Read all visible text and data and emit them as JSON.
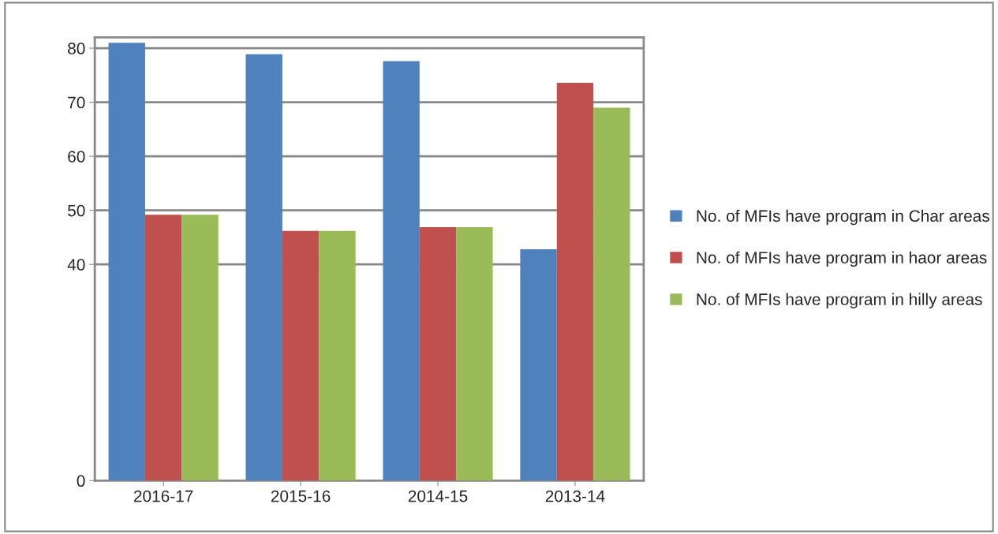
{
  "chart_data": {
    "type": "bar",
    "categories": [
      "2016-17",
      "2015-16",
      "2014-15",
      "2013-14"
    ],
    "series": [
      {
        "name": "No. of MFIs have program in Char areas",
        "color": "#4f81bd",
        "values": [
          81,
          78.9,
          77.6,
          42.8
        ]
      },
      {
        "name": "No. of MFIs have program in haor areas",
        "color": "#c0504d",
        "values": [
          49.2,
          46.2,
          46.9,
          73.6
        ]
      },
      {
        "name": "No. of MFIs have program in hilly areas",
        "color": "#9bbb59",
        "values": [
          49.2,
          46.2,
          46.9,
          69
        ]
      }
    ],
    "ylim": [
      0,
      82
    ],
    "yticks": [
      0,
      40,
      50,
      60,
      70,
      80
    ],
    "grid": "y",
    "legend": "right"
  }
}
